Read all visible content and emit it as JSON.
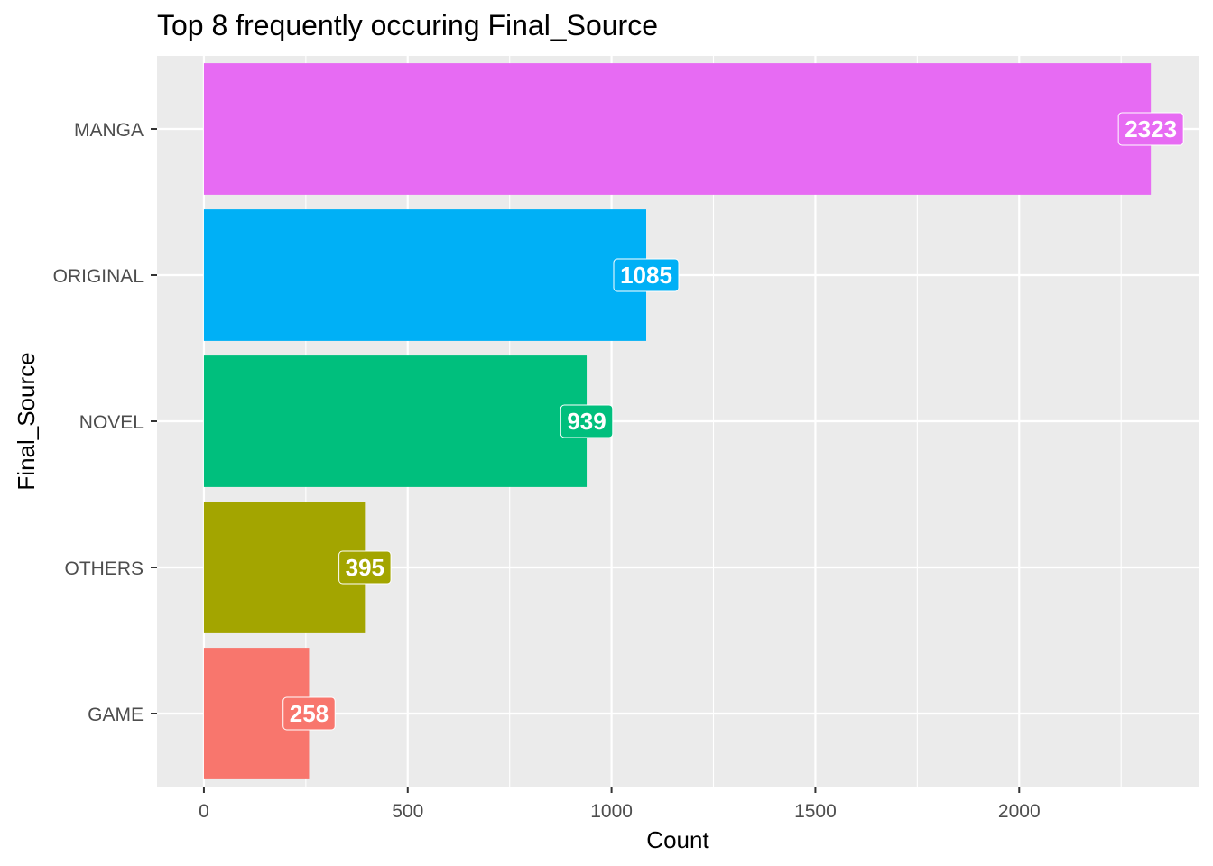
{
  "chart_data": {
    "type": "bar",
    "orientation": "horizontal",
    "title": "Top 8 frequently occuring Final_Source",
    "xlabel": "Count",
    "ylabel": "Final_Source",
    "categories": [
      "MANGA",
      "ORIGINAL",
      "NOVEL",
      "OTHERS",
      "GAME"
    ],
    "values": [
      2323,
      1085,
      939,
      395,
      258
    ],
    "colors": [
      "#E76BF3",
      "#00B0F6",
      "#00BF7D",
      "#A3A500",
      "#F8766D"
    ],
    "xlim": [
      -115,
      2440
    ],
    "x_ticks": [
      0,
      500,
      1000,
      1500,
      2000
    ],
    "x_tick_labels": [
      "0",
      "500",
      "1000",
      "1500",
      "2000"
    ],
    "x_minor_ticks": [
      250,
      750,
      1250,
      1750,
      2250
    ],
    "grid": true,
    "legend": "none",
    "panel_background": "#EBEBEB",
    "grid_color": "#FFFFFF"
  }
}
